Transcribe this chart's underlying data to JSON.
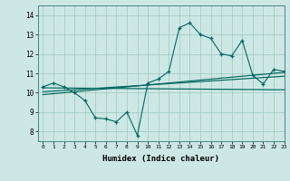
{
  "background_color": "#cde8e4",
  "grid_color": "#9dc8c0",
  "line_color": "#006660",
  "xlabel": "Humidex (Indice chaleur)",
  "xlim": [
    -0.5,
    23
  ],
  "ylim": [
    7.5,
    14.5
  ],
  "yticks": [
    8,
    9,
    10,
    11,
    12,
    13,
    14
  ],
  "xticks": [
    0,
    1,
    2,
    3,
    4,
    5,
    6,
    7,
    8,
    9,
    10,
    11,
    12,
    13,
    14,
    15,
    16,
    17,
    18,
    19,
    20,
    21,
    22,
    23
  ],
  "series1_y": [
    10.3,
    10.5,
    10.3,
    10.0,
    9.6,
    8.7,
    8.65,
    8.5,
    9.0,
    7.8,
    10.5,
    10.7,
    11.1,
    13.35,
    13.6,
    13.0,
    12.8,
    12.0,
    11.9,
    12.7,
    10.9,
    10.45,
    11.2,
    11.1
  ],
  "line1_start": 10.25,
  "line1_end": 10.15,
  "line2_start": 10.05,
  "line2_end": 10.85,
  "line3_start": 9.9,
  "line3_end": 11.05
}
